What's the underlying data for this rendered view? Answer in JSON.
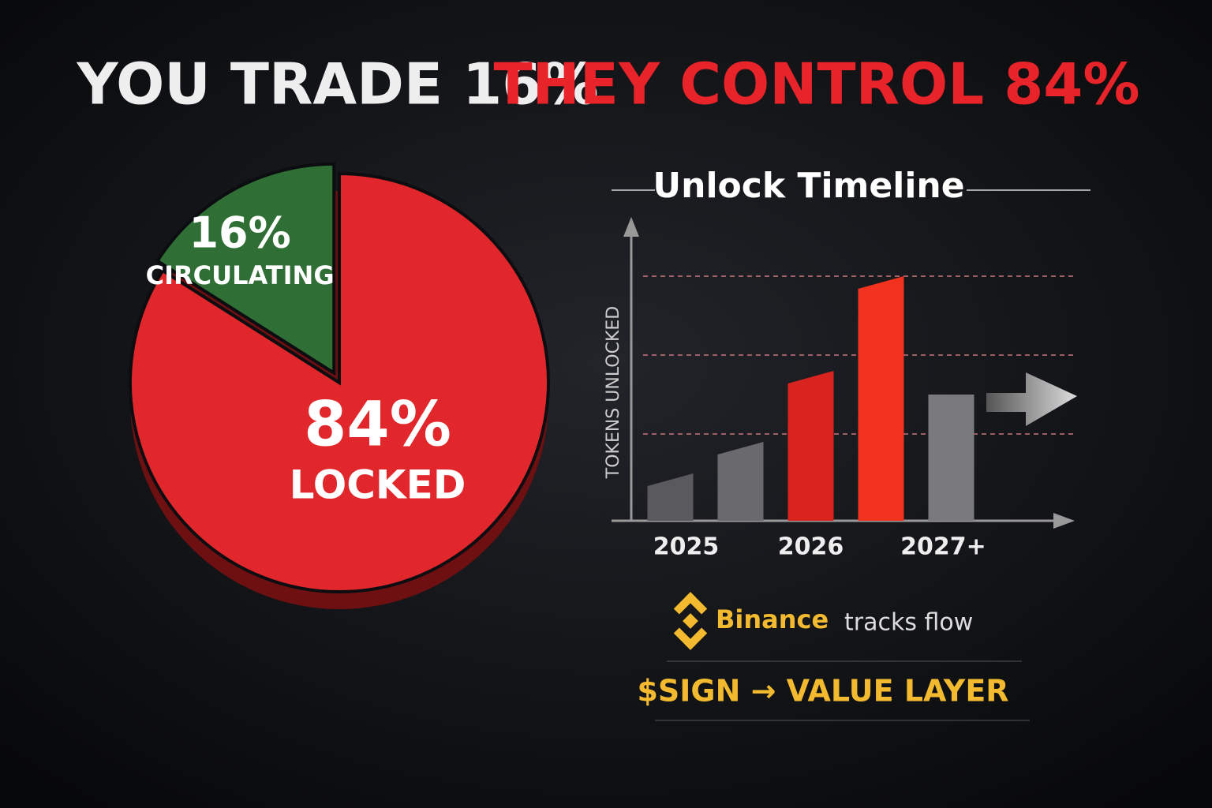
{
  "headline": {
    "left": "YOU TRADE 16%",
    "right": "THEY CONTROL 84%"
  },
  "chart_data": [
    {
      "type": "pie",
      "categories": [
        "CIRCULATING",
        "LOCKED"
      ],
      "values": [
        16,
        84
      ],
      "value_labels": [
        "16%",
        "84%"
      ],
      "colors": [
        "#2f6e35",
        "#e1272b"
      ]
    },
    {
      "type": "bar",
      "title": "Unlock Timeline",
      "y_label": "TOKENS UNLOCKED",
      "categories": [
        "2025",
        null,
        "2026",
        null,
        "2027+"
      ],
      "values": [
        0.6,
        1.0,
        1.9,
        3.1,
        1.6
      ],
      "colors": [
        "#5a5a5e",
        "#6a6a6e",
        "#d8231f",
        "#f0321f",
        "#7a7a7e"
      ],
      "ylim": [
        0,
        3.8
      ],
      "gridlines": [
        1.1,
        2.1,
        3.1
      ]
    }
  ],
  "footer": {
    "brand": "Binance",
    "tagline": "tracks flow",
    "slogan": "$SIGN → VALUE LAYER"
  }
}
